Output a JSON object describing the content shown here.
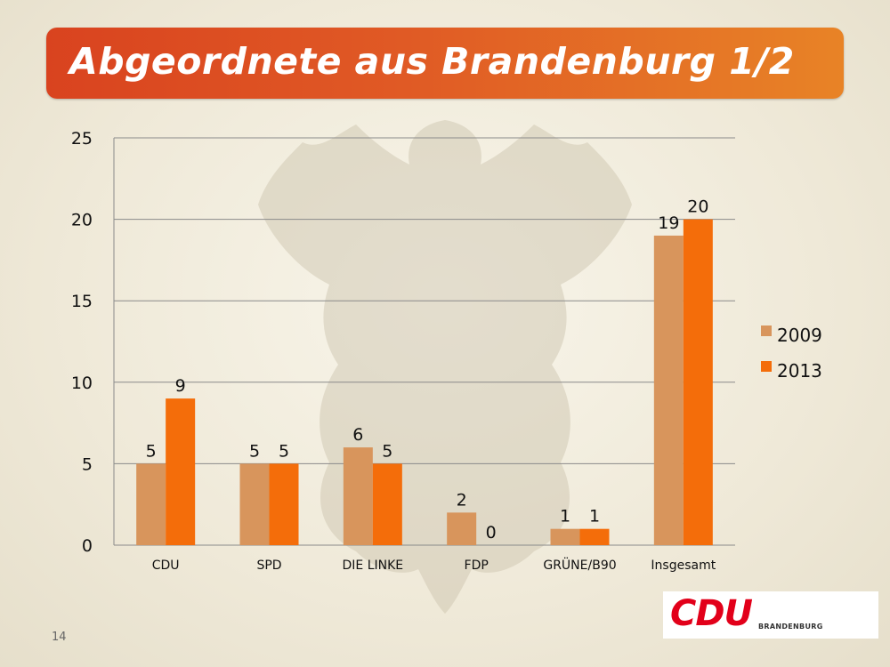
{
  "slide": {
    "title": "Abgeordnete aus Brandenburg 1/2",
    "page_number": "14",
    "logo": {
      "text": "CDU",
      "subtext": "BRANDENBURG"
    }
  },
  "colors": {
    "series_2009": "#d8955c",
    "series_2013": "#f46d0a",
    "gridline": "#8a8a8a"
  },
  "chart_data": {
    "type": "bar",
    "title": "Abgeordnete aus Brandenburg 1/2",
    "categories": [
      "CDU",
      "SPD",
      "DIE LINKE",
      "FDP",
      "GRÜNE/B90",
      "Insgesamt"
    ],
    "series": [
      {
        "name": "2009",
        "values": [
          5,
          5,
          6,
          2,
          1,
          19
        ]
      },
      {
        "name": "2013",
        "values": [
          9,
          5,
          5,
          0,
          1,
          20
        ]
      }
    ],
    "yticks": [
      "0",
      "5",
      "10",
      "15",
      "20",
      "25"
    ],
    "ylim": [
      0,
      25
    ],
    "grid": true,
    "legend": "right"
  }
}
